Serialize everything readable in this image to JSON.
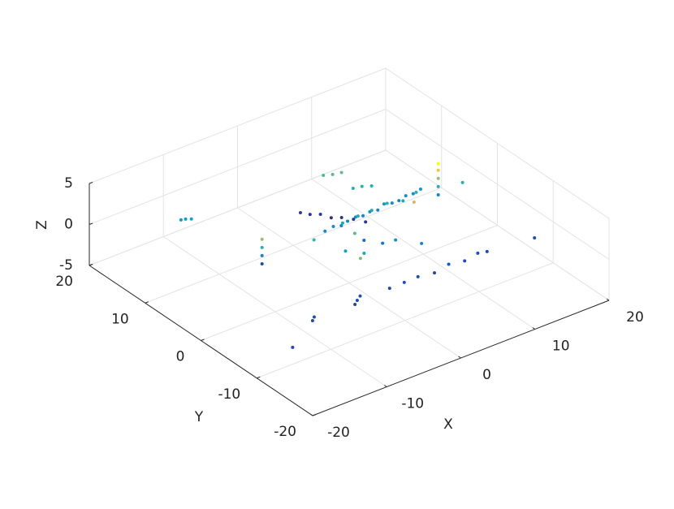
{
  "chart_data": {
    "type": "scatter3d",
    "xlabel": "X",
    "ylabel": "Y",
    "zlabel": "Z",
    "xlim": [
      -20,
      20
    ],
    "ylim": [
      -20,
      20
    ],
    "zlim": [
      -5,
      5
    ],
    "xticks": [
      -20,
      -10,
      0,
      10,
      20
    ],
    "yticks": [
      -20,
      -10,
      0,
      10,
      20
    ],
    "zticks": [
      -5,
      0,
      5
    ],
    "grid": true,
    "colormap": [
      "#352a87",
      "#0f5cdd",
      "#1481d6",
      "#06a4ca",
      "#2eb7a4",
      "#87bf77",
      "#d1bb59",
      "#fec832",
      "#f9fb0e"
    ],
    "x": [
      -0.7,
      0.5,
      1.5,
      2.5,
      3.5,
      4.5,
      5.5,
      6.5,
      7.5,
      8.5,
      9.5,
      10.5,
      11.5,
      12.5,
      1,
      3,
      5,
      7,
      9,
      11,
      0.8,
      1.5,
      2.3,
      3,
      3.8,
      4.5,
      5.3,
      5.6,
      6.5,
      4.8,
      6.1,
      7,
      8,
      -1.4,
      0.5,
      2.5,
      4.5,
      6.5,
      8.5,
      10.5,
      11.6,
      -5.7,
      -5,
      -6.3,
      -12.1,
      -11.5,
      -17.2,
      -11.6,
      -11.2,
      -12,
      -9.2,
      -9.2,
      -9.2,
      -9.2,
      13.6,
      13.6,
      13.6,
      13.6,
      13.6,
      16.2,
      17.4,
      -2,
      0,
      2,
      4,
      -4,
      -1,
      3,
      6,
      8,
      -3
    ],
    "y": [
      3.4,
      3.5,
      3.4,
      3.6,
      3.5,
      3.5,
      3.6,
      3.5,
      3.7,
      3.6,
      3.7,
      3.8,
      3.8,
      3.8,
      2.5,
      2.4,
      2.6,
      2.5,
      2.3,
      2.6,
      9.8,
      9,
      8.2,
      7.2,
      6.4,
      5.2,
      4.1,
      10.4,
      10,
      11,
      7.4,
      7,
      6.6,
      -9.1,
      -9.2,
      -9,
      -9.3,
      -9.2,
      -9.4,
      -9.1,
      -9.3,
      -9,
      -8.6,
      -9.4,
      -9.5,
      -9,
      -12.7,
      13.9,
      13.4,
      14.2,
      3.4,
      3.4,
      3.4,
      3.4,
      2.1,
      2.1,
      2.1,
      2.1,
      2.1,
      1.2,
      -10.1,
      -2,
      -1,
      0,
      -3,
      1,
      -4,
      -2,
      -5,
      -1,
      -6
    ],
    "z": [
      0,
      0.1,
      -0.1,
      0,
      0.2,
      0,
      0.1,
      0,
      0.3,
      0.1,
      0,
      0.2,
      0.1,
      0.3,
      0.8,
      1,
      0.9,
      1.1,
      0.8,
      1,
      -1.2,
      -1.3,
      -1.2,
      -1.4,
      -1.3,
      -1.2,
      -1.3,
      1.5,
      1.6,
      1.4,
      1,
      1.1,
      1,
      -1,
      -0.9,
      -1,
      -1.1,
      -0.8,
      -1,
      -0.9,
      -1,
      -1,
      -0.9,
      -1.1,
      -1,
      -1,
      -1,
      0.5,
      0.6,
      0.4,
      -1,
      0,
      1,
      2,
      0,
      1,
      2,
      3,
      3.8,
      1,
      -1,
      0.5,
      1.5,
      -0.5,
      0.2,
      1.2,
      0.8,
      -0.3,
      0,
      2.5,
      1.8
    ]
  }
}
